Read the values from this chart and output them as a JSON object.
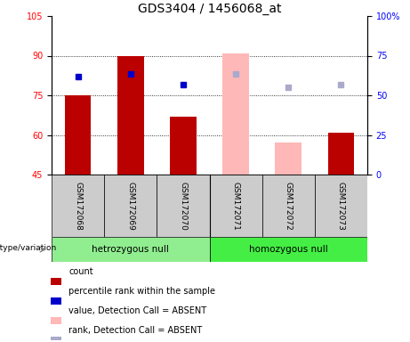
{
  "title": "GDS3404 / 1456068_at",
  "samples": [
    "GSM172068",
    "GSM172069",
    "GSM172070",
    "GSM172071",
    "GSM172072",
    "GSM172073"
  ],
  "left_ylim": [
    45,
    105
  ],
  "left_yticks": [
    45,
    60,
    75,
    90,
    105
  ],
  "red_bars": [
    75,
    90,
    67,
    null,
    null,
    61
  ],
  "pink_bars": [
    null,
    null,
    null,
    91,
    57,
    null
  ],
  "blue_squares": [
    82,
    83,
    79,
    null,
    null,
    null
  ],
  "lightblue_squares": [
    null,
    null,
    null,
    83,
    78,
    79
  ],
  "groups": [
    {
      "label": "hetrozygous null",
      "indices": [
        0,
        1,
        2
      ],
      "color": "#90ee90"
    },
    {
      "label": "homozygous null",
      "indices": [
        3,
        4,
        5
      ],
      "color": "#44ee44"
    }
  ],
  "bar_width": 0.5,
  "red_color": "#bb0000",
  "pink_color": "#ffb8b8",
  "blue_color": "#0000cc",
  "lightblue_color": "#aaaacc",
  "bg_color": "#cccccc",
  "legend_items": [
    {
      "label": "count",
      "color": "#bb0000"
    },
    {
      "label": "percentile rank within the sample",
      "color": "#0000cc"
    },
    {
      "label": "value, Detection Call = ABSENT",
      "color": "#ffb8b8"
    },
    {
      "label": "rank, Detection Call = ABSENT",
      "color": "#aaaacc"
    }
  ],
  "genotype_label": "genotype/variation",
  "title_fontsize": 10,
  "tick_fontsize": 7,
  "label_fontsize": 7.5
}
